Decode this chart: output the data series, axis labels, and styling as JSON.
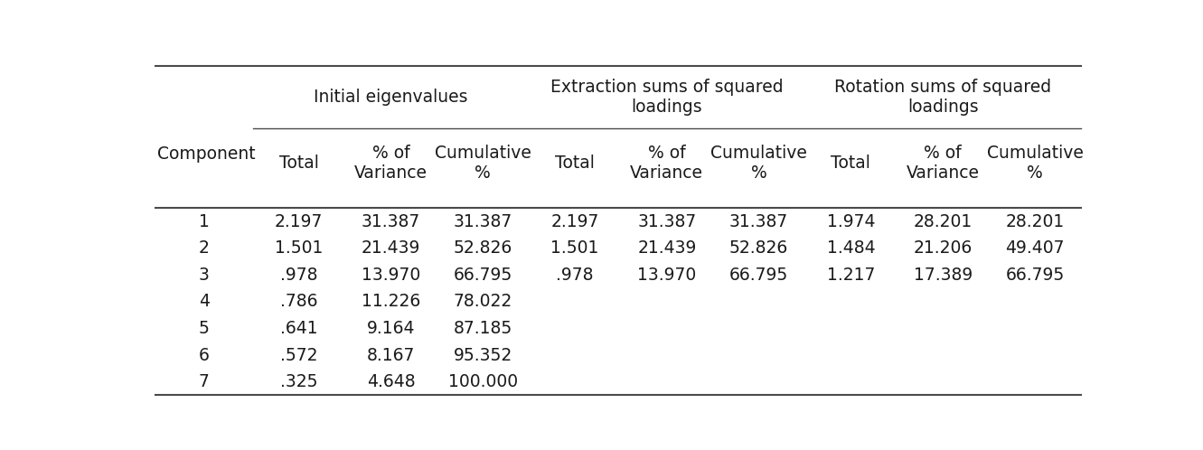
{
  "col_groups": [
    {
      "label": "Initial eigenvalues"
    },
    {
      "label": "Extraction sums of squared\nloadings"
    },
    {
      "label": "Rotation sums of squared\nloadings"
    }
  ],
  "sub_headers": [
    "Total",
    "% of\nVariance",
    "Cumulative\n%"
  ],
  "row_label": "Component",
  "rows": [
    [
      "1",
      "2.197",
      "31.387",
      "31.387",
      "2.197",
      "31.387",
      "31.387",
      "1.974",
      "28.201",
      "28.201"
    ],
    [
      "2",
      "1.501",
      "21.439",
      "52.826",
      "1.501",
      "21.439",
      "52.826",
      "1.484",
      "21.206",
      "49.407"
    ],
    [
      "3",
      ".978",
      "13.970",
      "66.795",
      ".978",
      "13.970",
      "66.795",
      "1.217",
      "17.389",
      "66.795"
    ],
    [
      "4",
      ".786",
      "11.226",
      "78.022",
      "",
      "",
      "",
      "",
      "",
      ""
    ],
    [
      "5",
      ".641",
      "9.164",
      "87.185",
      "",
      "",
      "",
      "",
      "",
      ""
    ],
    [
      "6",
      ".572",
      "8.167",
      "95.352",
      "",
      "",
      "",
      "",
      "",
      ""
    ],
    [
      "7",
      ".325",
      "4.648",
      "100.000",
      "",
      "",
      "",
      "",
      "",
      ""
    ]
  ],
  "background_color": "#ffffff",
  "text_color": "#1a1a1a",
  "line_color": "#4a4a4a",
  "font_size": 13.5,
  "header_font_size": 13.5
}
